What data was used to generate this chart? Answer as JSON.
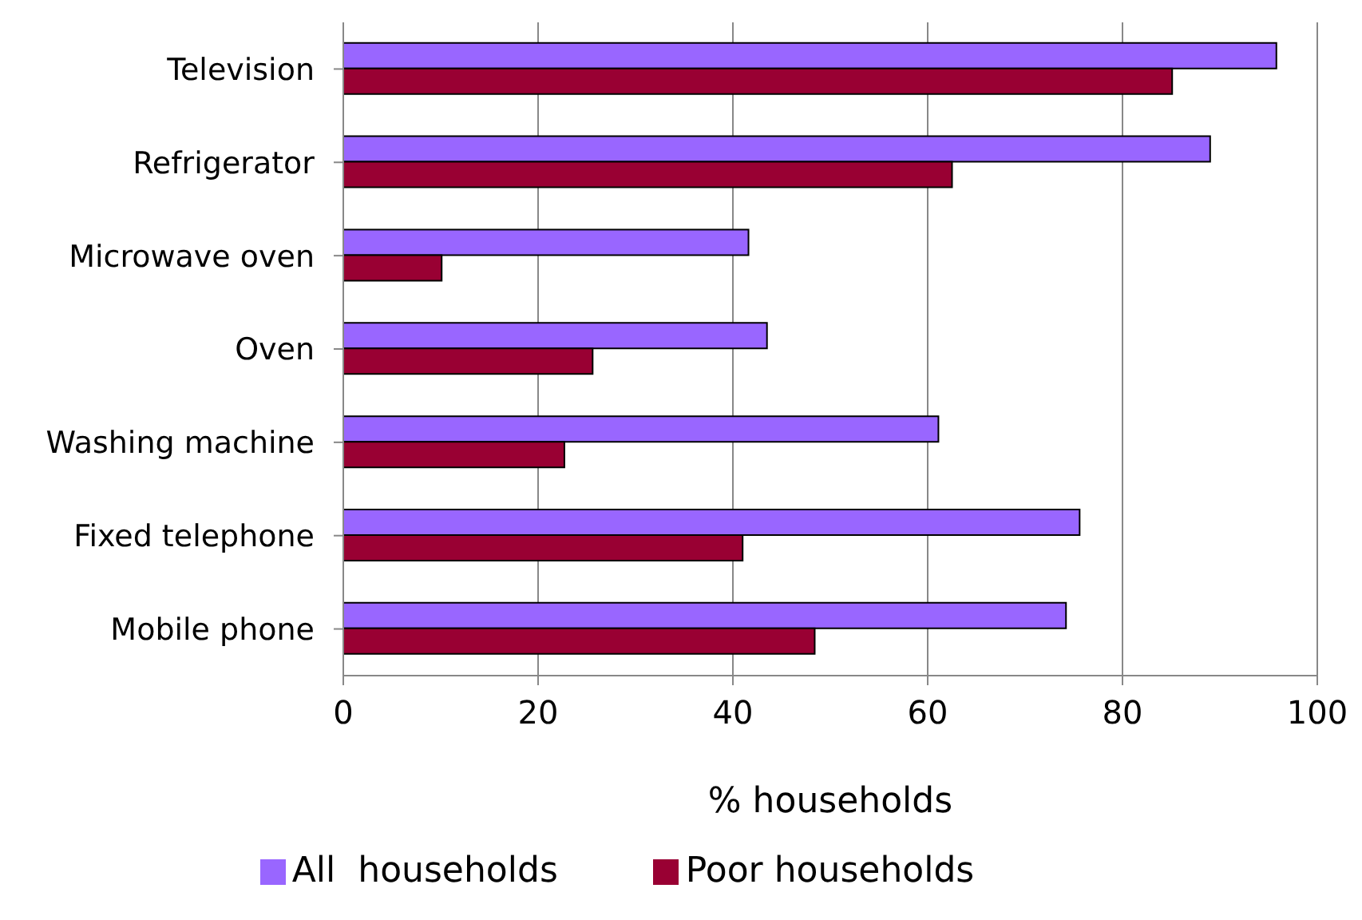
{
  "chart_data": {
    "type": "bar",
    "orientation": "horizontal",
    "xlabel": "% households",
    "categories": [
      "Television",
      "Refrigerator",
      "Microwave oven",
      "Oven",
      "Washing machine",
      "Fixed telephone",
      "Mobile phone"
    ],
    "series": [
      {
        "name": "All  households",
        "color": "#9966ff",
        "values": [
          95.8,
          89,
          41.6,
          43.5,
          61.1,
          75.6,
          74.2
        ]
      },
      {
        "name": "Poor households",
        "color": "#990033",
        "values": [
          85.1,
          62.5,
          10.1,
          25.6,
          22.7,
          41,
          48.4
        ]
      }
    ],
    "xlim": [
      0,
      100
    ],
    "xticks": [
      0,
      20,
      40,
      60,
      80,
      100
    ],
    "grid": "x",
    "legend": "bottom"
  }
}
